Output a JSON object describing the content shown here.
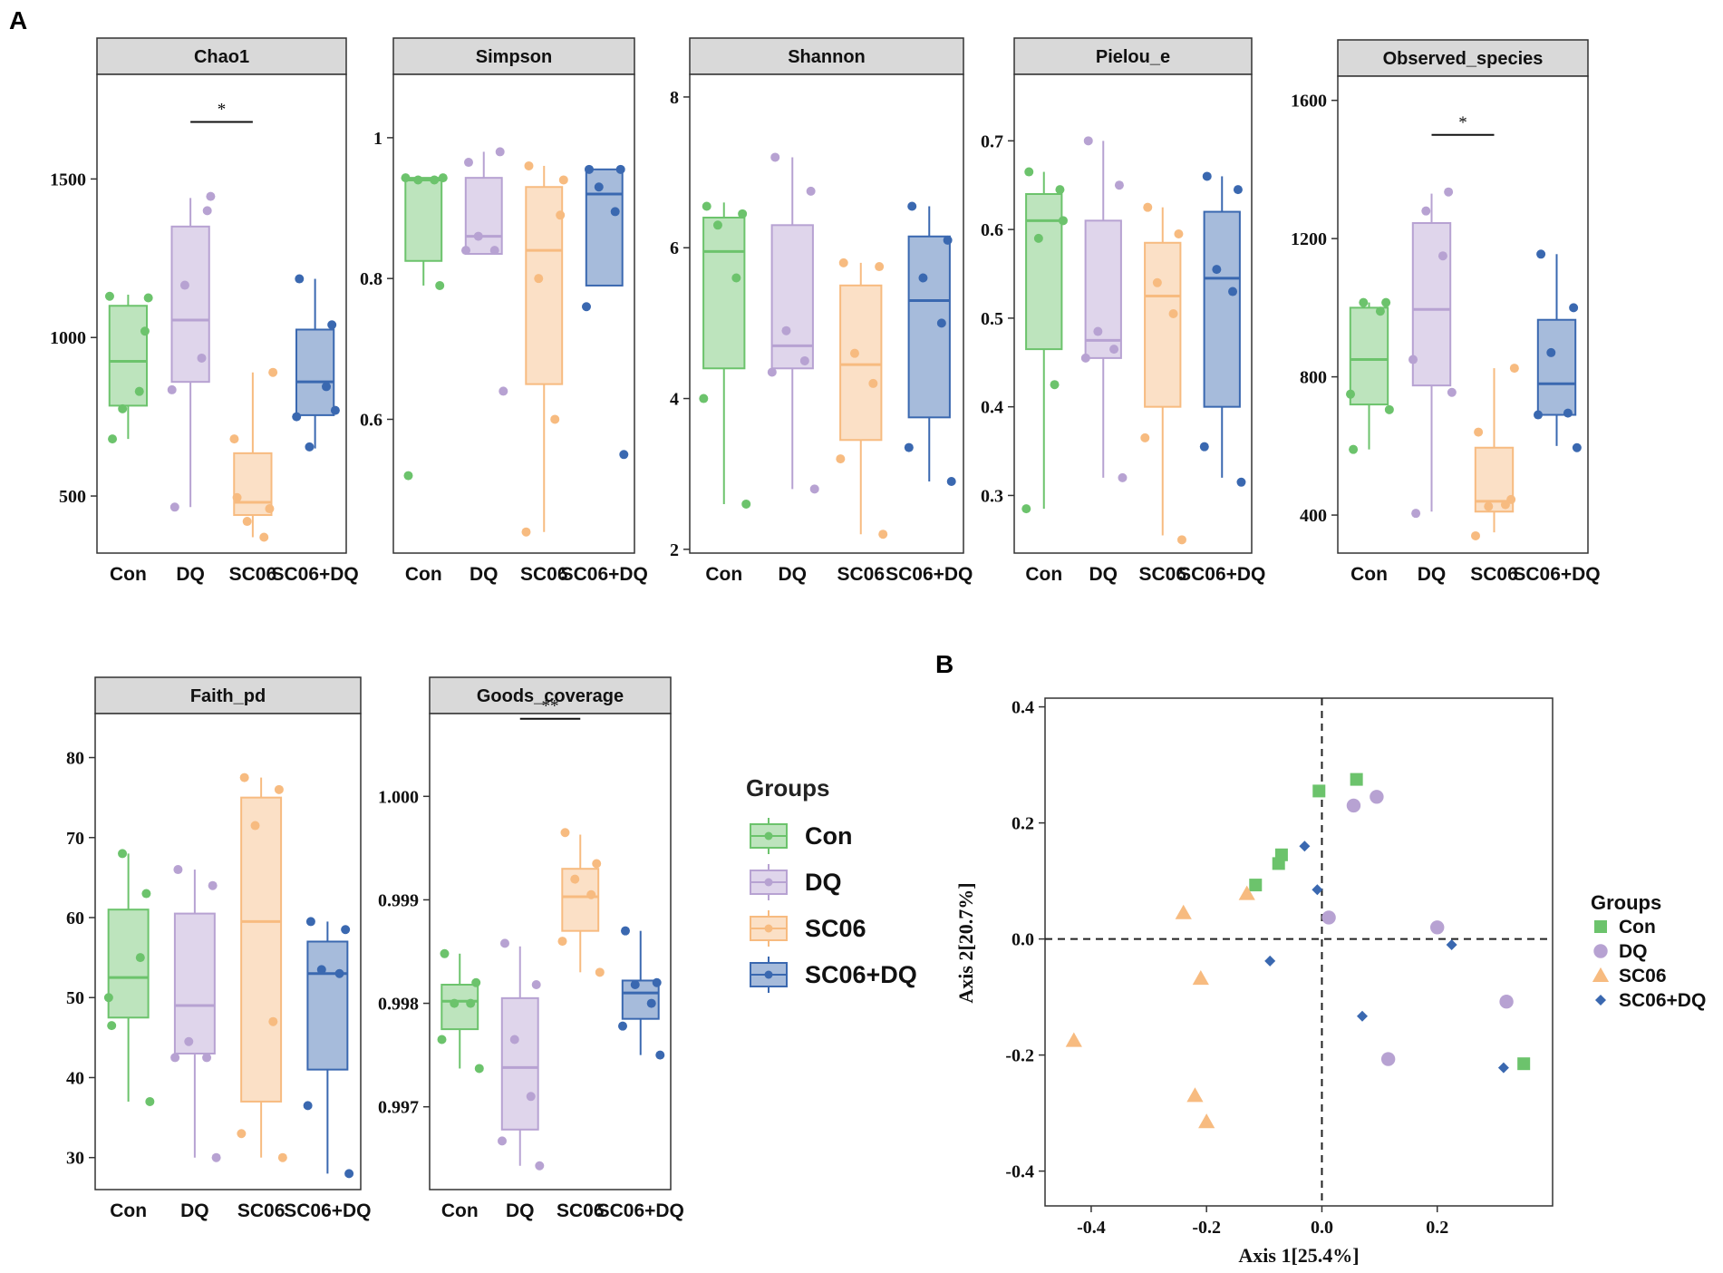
{
  "panel_labels": {
    "a": "A",
    "b": "B"
  },
  "colors": {
    "Con": "#6cc36c",
    "DQ": "#b7a2d2",
    "SC06": "#f7bb80",
    "SC06+DQ": "#3a68b0",
    "strip_fill": "#d9d9d9",
    "frame": "#333333"
  },
  "groups_legend": {
    "title": "Groups",
    "items": [
      "Con",
      "DQ",
      "SC06",
      "SC06+DQ"
    ]
  },
  "chart_data": [
    {
      "id": "chao1",
      "type": "boxplot",
      "title": "Chao1",
      "categories": [
        "Con",
        "DQ",
        "SC06",
        "SC06+DQ"
      ],
      "yticks": [
        500,
        1000,
        1500
      ],
      "ylim": [
        320,
        1830
      ],
      "boxes": [
        {
          "group": "Con",
          "min": 680,
          "q1": 785,
          "median": 925,
          "q3": 1100,
          "max": 1135
        },
        {
          "group": "DQ",
          "min": 465,
          "q1": 860,
          "median": 1055,
          "q3": 1350,
          "max": 1440
        },
        {
          "group": "SC06",
          "min": 370,
          "q1": 440,
          "median": 480,
          "q3": 635,
          "max": 890
        },
        {
          "group": "SC06+DQ",
          "min": 650,
          "q1": 755,
          "median": 860,
          "q3": 1025,
          "max": 1185
        }
      ],
      "points": [
        [
          680,
          1020,
          775,
          830,
          1130,
          1125
        ],
        [
          465,
          1400,
          1165,
          935,
          835,
          1445
        ],
        [
          495,
          460,
          420,
          370,
          680,
          890
        ],
        [
          1185,
          1040,
          655,
          845,
          750,
          770
        ]
      ],
      "significance": [
        {
          "from": "DQ",
          "to": "SC06",
          "label": "*",
          "y": 1680
        }
      ]
    },
    {
      "id": "simpson",
      "type": "boxplot",
      "title": "Simpson",
      "categories": [
        "Con",
        "DQ",
        "SC06",
        "SC06+DQ"
      ],
      "yticks": [
        0.6,
        0.8,
        1.0
      ],
      "ylim": [
        0.41,
        1.09
      ],
      "boxes": [
        {
          "group": "Con",
          "min": 0.79,
          "q1": 0.825,
          "median": 0.94,
          "q3": 0.943,
          "max": 0.943
        },
        {
          "group": "DQ",
          "min": 0.835,
          "q1": 0.835,
          "median": 0.86,
          "q3": 0.943,
          "max": 0.98
        },
        {
          "group": "SC06",
          "min": 0.44,
          "q1": 0.65,
          "median": 0.84,
          "q3": 0.93,
          "max": 0.96
        },
        {
          "group": "SC06+DQ",
          "min": 0.79,
          "q1": 0.79,
          "median": 0.92,
          "q3": 0.955,
          "max": 0.955
        }
      ],
      "points": [
        [
          0.52,
          0.79,
          0.94,
          0.94,
          0.943,
          0.943
        ],
        [
          0.965,
          0.98,
          0.86,
          0.84,
          0.84,
          0.64
        ],
        [
          0.96,
          0.89,
          0.8,
          0.6,
          0.44,
          0.94
        ],
        [
          0.955,
          0.955,
          0.93,
          0.895,
          0.76,
          0.55
        ]
      ]
    },
    {
      "id": "shannon",
      "type": "boxplot",
      "title": "Shannon",
      "categories": [
        "Con",
        "DQ",
        "SC06",
        "SC06+DQ"
      ],
      "yticks": [
        2,
        4,
        6,
        8
      ],
      "ylim": [
        1.95,
        8.3
      ],
      "boxes": [
        {
          "group": "Con",
          "min": 2.6,
          "q1": 4.4,
          "median": 5.95,
          "q3": 6.4,
          "max": 6.6
        },
        {
          "group": "DQ",
          "min": 2.8,
          "q1": 4.4,
          "median": 4.7,
          "q3": 6.3,
          "max": 7.2
        },
        {
          "group": "SC06",
          "min": 2.2,
          "q1": 3.45,
          "median": 4.45,
          "q3": 5.5,
          "max": 5.8
        },
        {
          "group": "SC06+DQ",
          "min": 2.9,
          "q1": 3.75,
          "median": 5.3,
          "q3": 6.15,
          "max": 6.55
        }
      ],
      "points": [
        [
          6.55,
          6.45,
          6.3,
          5.6,
          4.0,
          2.6
        ],
        [
          7.2,
          6.75,
          4.9,
          4.5,
          4.35,
          2.8
        ],
        [
          5.8,
          5.75,
          4.6,
          4.2,
          3.2,
          2.2
        ],
        [
          6.55,
          6.1,
          5.6,
          5.0,
          3.35,
          2.9
        ]
      ]
    },
    {
      "id": "pielou_e",
      "type": "boxplot",
      "title": "Pielou_e",
      "categories": [
        "Con",
        "DQ",
        "SC06",
        "SC06+DQ"
      ],
      "yticks": [
        0.3,
        0.4,
        0.5,
        0.6,
        0.7
      ],
      "ylim": [
        0.235,
        0.775
      ],
      "boxes": [
        {
          "group": "Con",
          "min": 0.285,
          "q1": 0.465,
          "median": 0.61,
          "q3": 0.64,
          "max": 0.665
        },
        {
          "group": "DQ",
          "min": 0.32,
          "q1": 0.455,
          "median": 0.475,
          "q3": 0.61,
          "max": 0.7
        },
        {
          "group": "SC06",
          "min": 0.255,
          "q1": 0.4,
          "median": 0.525,
          "q3": 0.585,
          "max": 0.625
        },
        {
          "group": "SC06+DQ",
          "min": 0.32,
          "q1": 0.4,
          "median": 0.545,
          "q3": 0.62,
          "max": 0.66
        }
      ],
      "points": [
        [
          0.665,
          0.645,
          0.59,
          0.425,
          0.285,
          0.61
        ],
        [
          0.7,
          0.65,
          0.485,
          0.465,
          0.455,
          0.32
        ],
        [
          0.625,
          0.595,
          0.54,
          0.505,
          0.365,
          0.25
        ],
        [
          0.66,
          0.645,
          0.555,
          0.53,
          0.355,
          0.315
        ]
      ]
    },
    {
      "id": "observed_species",
      "type": "boxplot",
      "title": "Observed_species",
      "categories": [
        "Con",
        "DQ",
        "SC06",
        "SC06+DQ"
      ],
      "yticks": [
        400,
        800,
        1200,
        1600
      ],
      "ylim": [
        290,
        1670
      ],
      "boxes": [
        {
          "group": "Con",
          "min": 590,
          "q1": 720,
          "median": 850,
          "q3": 1000,
          "max": 1015
        },
        {
          "group": "DQ",
          "min": 410,
          "q1": 775,
          "median": 995,
          "q3": 1245,
          "max": 1330
        },
        {
          "group": "SC06",
          "min": 350,
          "q1": 410,
          "median": 440,
          "q3": 595,
          "max": 825
        },
        {
          "group": "SC06+DQ",
          "min": 600,
          "q1": 690,
          "median": 780,
          "q3": 965,
          "max": 1155
        }
      ],
      "points": [
        [
          590,
          1015,
          1015,
          990,
          750,
          705
        ],
        [
          405,
          1335,
          1280,
          1150,
          850,
          755
        ],
        [
          640,
          445,
          425,
          430,
          340,
          825
        ],
        [
          1155,
          1000,
          870,
          695,
          690,
          595
        ]
      ],
      "significance": [
        {
          "from": "DQ",
          "to": "SC06",
          "label": "*",
          "y": 1500
        }
      ]
    },
    {
      "id": "faith_pd",
      "type": "boxplot",
      "title": "Faith_pd",
      "categories": [
        "Con",
        "DQ",
        "SC06",
        "SC06+DQ"
      ],
      "yticks": [
        30,
        40,
        50,
        60,
        70,
        80
      ],
      "ylim": [
        26,
        85.5
      ],
      "boxes": [
        {
          "group": "Con",
          "min": 37,
          "q1": 47.5,
          "median": 52.5,
          "q3": 61,
          "max": 68
        },
        {
          "group": "DQ",
          "min": 30,
          "q1": 43,
          "median": 49,
          "q3": 60.5,
          "max": 66
        },
        {
          "group": "SC06",
          "min": 30,
          "q1": 37,
          "median": 59.5,
          "q3": 75,
          "max": 77.5
        },
        {
          "group": "SC06+DQ",
          "min": 28,
          "q1": 41,
          "median": 53,
          "q3": 57,
          "max": 59.5
        }
      ],
      "points": [
        [
          46.5,
          63,
          68,
          55,
          50,
          37
        ],
        [
          66,
          64,
          44.5,
          42.5,
          42.5,
          30
        ],
        [
          77.5,
          76,
          71.5,
          47,
          33,
          30
        ],
        [
          59.5,
          58.5,
          53.5,
          53,
          36.5,
          28
        ]
      ]
    },
    {
      "id": "goods_coverage",
      "type": "boxplot",
      "title": "Goods_coverage",
      "categories": [
        "Con",
        "DQ",
        "SC06",
        "SC06+DQ"
      ],
      "yticks": [
        0.997,
        0.998,
        0.999,
        1.0
      ],
      "ylim": [
        0.9962,
        1.0008
      ],
      "ytick_labels": [
        "0.997",
        "0.998",
        "0.999",
        "1.000"
      ],
      "boxes": [
        {
          "group": "Con",
          "min": 0.99737,
          "q1": 0.99775,
          "median": 0.99802,
          "q3": 0.99818,
          "max": 0.99848
        },
        {
          "group": "DQ",
          "min": 0.99643,
          "q1": 0.99678,
          "median": 0.99738,
          "q3": 0.99805,
          "max": 0.99855
        },
        {
          "group": "SC06",
          "min": 0.9983,
          "q1": 0.9987,
          "median": 0.99903,
          "q3": 0.9993,
          "max": 0.99963
        },
        {
          "group": "SC06+DQ",
          "min": 0.9975,
          "q1": 0.99785,
          "median": 0.9981,
          "q3": 0.99822,
          "max": 0.9987
        }
      ],
      "points": [
        [
          0.99848,
          0.9982,
          0.998,
          0.998,
          0.99765,
          0.99737
        ],
        [
          0.99858,
          0.99818,
          0.99765,
          0.9971,
          0.99667,
          0.99643
        ],
        [
          0.99965,
          0.99935,
          0.9992,
          0.99905,
          0.9986,
          0.9983
        ],
        [
          0.9987,
          0.9982,
          0.99818,
          0.998,
          0.99778,
          0.9975
        ]
      ],
      "significance": [
        {
          "from": "DQ",
          "to": "SC06",
          "label": "**",
          "y": 1.00075
        }
      ]
    },
    {
      "id": "pcoa",
      "type": "scatter",
      "title": "",
      "xlabel": "Axis 1[25.4%]",
      "ylabel": "Axis 2[20.7%]",
      "xlim": [
        -0.48,
        0.4
      ],
      "ylim": [
        -0.46,
        0.415
      ],
      "xticks": [
        -0.4,
        -0.2,
        0.0,
        0.2
      ],
      "xtick_labels": [
        "-0.4",
        "-0.2",
        "0.0",
        "0.2"
      ],
      "yticks": [
        -0.4,
        -0.2,
        0.0,
        0.2,
        0.4
      ],
      "ytick_labels": [
        "-0.4",
        "-0.2",
        "0.0",
        "0.2",
        "0.4"
      ],
      "reference_lines": {
        "x": 0,
        "y": 0
      },
      "legend": {
        "title": "Groups",
        "position": "right"
      },
      "series": [
        {
          "name": "Con",
          "marker": "square",
          "points": [
            [
              0.06,
              0.275
            ],
            [
              -0.005,
              0.255
            ],
            [
              -0.07,
              0.145
            ],
            [
              -0.075,
              0.13
            ],
            [
              -0.115,
              0.093
            ],
            [
              0.35,
              -0.215
            ]
          ]
        },
        {
          "name": "DQ",
          "marker": "circle",
          "points": [
            [
              0.095,
              0.245
            ],
            [
              0.055,
              0.23
            ],
            [
              0.012,
              0.037
            ],
            [
              0.2,
              0.02
            ],
            [
              0.32,
              -0.108
            ],
            [
              0.115,
              -0.207
            ]
          ]
        },
        {
          "name": "SC06",
          "marker": "triangle",
          "points": [
            [
              -0.24,
              0.045
            ],
            [
              -0.13,
              0.078
            ],
            [
              -0.21,
              -0.068
            ],
            [
              -0.43,
              -0.175
            ],
            [
              -0.22,
              -0.27
            ],
            [
              -0.2,
              -0.315
            ]
          ]
        },
        {
          "name": "SC06+DQ",
          "marker": "diamond",
          "points": [
            [
              -0.03,
              0.16
            ],
            [
              -0.008,
              0.085
            ],
            [
              -0.09,
              -0.038
            ],
            [
              0.225,
              -0.01
            ],
            [
              0.07,
              -0.133
            ],
            [
              0.315,
              -0.222
            ]
          ]
        }
      ]
    }
  ]
}
